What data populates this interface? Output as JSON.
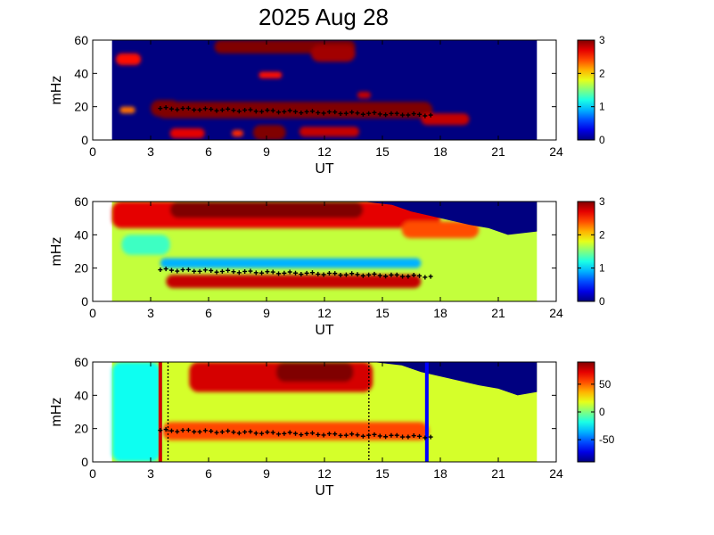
{
  "chart_data": {
    "title": "2025 Aug 28",
    "panels": [
      {
        "type": "heatmap",
        "id": "coherence",
        "xlabel": "UT",
        "ylabel": "mHz",
        "xlim": [
          0,
          24
        ],
        "ylim": [
          0,
          60
        ],
        "xticks": [
          "0",
          "3",
          "6",
          "9",
          "12",
          "15",
          "18",
          "21",
          "24"
        ],
        "yticks": [
          "0",
          "20",
          "40",
          "60"
        ],
        "data_span_ut": [
          1,
          23
        ],
        "colorbar": {
          "range": [
            0,
            3
          ],
          "ticks": [
            "0",
            "1",
            "2",
            "3"
          ]
        },
        "background_value": 0,
        "blobs": [
          {
            "ut": [
              3.3,
              17.6
            ],
            "mhz": [
              13,
              23
            ],
            "value": 3
          },
          {
            "ut": [
              3.0,
              4.5
            ],
            "mhz": [
              14,
              24
            ],
            "value": 3
          },
          {
            "ut": [
              17.0,
              19.5
            ],
            "mhz": [
              9,
              16
            ],
            "value": 2.8
          },
          {
            "ut": [
              8.3,
              10.0
            ],
            "mhz": [
              0,
              9
            ],
            "value": 3
          },
          {
            "ut": [
              4.0,
              5.8
            ],
            "mhz": [
              1,
              7
            ],
            "value": 2.7
          },
          {
            "ut": [
              7.2,
              7.8
            ],
            "mhz": [
              2,
              6
            ],
            "value": 2.5
          },
          {
            "ut": [
              10.7,
              13.8
            ],
            "mhz": [
              2,
              8
            ],
            "value": 2.8
          },
          {
            "ut": [
              6.3,
              13.6
            ],
            "mhz": [
              52,
              60
            ],
            "value": 3
          },
          {
            "ut": [
              11.3,
              13.6
            ],
            "mhz": [
              47,
              57
            ],
            "value": 2.9
          },
          {
            "ut": [
              1.2,
              2.5
            ],
            "mhz": [
              45,
              52
            ],
            "value": 2.6
          },
          {
            "ut": [
              1.4,
              2.2
            ],
            "mhz": [
              16,
              20
            ],
            "value": 2.3
          },
          {
            "ut": [
              8.6,
              9.8
            ],
            "mhz": [
              37,
              41
            ],
            "value": 2.6
          },
          {
            "ut": [
              13.7,
              14.4
            ],
            "mhz": [
              25,
              29
            ],
            "value": 2.8
          }
        ],
        "ridge": {
          "label": "dominant frequency",
          "ut": [
            3.5,
            17.5
          ],
          "mhz": [
            19,
            15
          ]
        }
      },
      {
        "type": "heatmap",
        "id": "power",
        "xlabel": "UT",
        "ylabel": "mHz",
        "xlim": [
          0,
          24
        ],
        "ylim": [
          0,
          60
        ],
        "xticks": [
          "0",
          "3",
          "6",
          "9",
          "12",
          "15",
          "18",
          "21",
          "24"
        ],
        "yticks": [
          "0",
          "20",
          "40",
          "60"
        ],
        "data_span_ut": [
          1,
          23
        ],
        "colorbar": {
          "range": [
            0,
            3
          ],
          "ticks": [
            "0",
            "1",
            "2",
            "3"
          ]
        },
        "background_value": 1.7,
        "blobs": [
          {
            "ut": [
              1.0,
              18.0
            ],
            "mhz": [
              44,
              60
            ],
            "value": 2.7
          },
          {
            "ut": [
              4.0,
              14.0
            ],
            "mhz": [
              50,
              60
            ],
            "value": 3
          },
          {
            "ut": [
              3.5,
              17.0
            ],
            "mhz": [
              20,
              26
            ],
            "value": 0.9
          },
          {
            "ut": [
              3.8,
              17.0
            ],
            "mhz": [
              8,
              16
            ],
            "value": 2.8
          },
          {
            "ut": [
              16.0,
              20.0
            ],
            "mhz": [
              38,
              48
            ],
            "value": 2.4
          },
          {
            "ut": [
              1.5,
              4.0
            ],
            "mhz": [
              28,
              40
            ],
            "value": 1.3
          }
        ],
        "dark_region": {
          "ut_start": 14.0,
          "mhz_top": 60,
          "value": 0
        },
        "ridge": {
          "label": "dominant frequency",
          "ut": [
            3.5,
            17.5
          ],
          "mhz": [
            19,
            15
          ]
        }
      },
      {
        "type": "heatmap",
        "id": "phase",
        "xlabel": "UT",
        "ylabel": "mHz",
        "xlim": [
          0,
          24
        ],
        "ylim": [
          0,
          60
        ],
        "xticks": [
          "0",
          "3",
          "6",
          "9",
          "12",
          "15",
          "18",
          "21",
          "24"
        ],
        "yticks": [
          "0",
          "20",
          "40",
          "60"
        ],
        "data_span_ut": [
          1,
          23
        ],
        "colorbar": {
          "range": [
            -90,
            90
          ],
          "ticks": [
            "-50",
            "0",
            "50"
          ]
        },
        "background_value": 15,
        "blobs": [
          {
            "ut": [
              5.0,
              14.5
            ],
            "mhz": [
              42,
              60
            ],
            "value": 75
          },
          {
            "ut": [
              9.5,
              13.5
            ],
            "mhz": [
              48,
              60
            ],
            "value": 90
          },
          {
            "ut": [
              3.6,
              17.4
            ],
            "mhz": [
              13,
              24
            ],
            "value": 55
          },
          {
            "ut": [
              1.0,
              3.5
            ],
            "mhz": [
              0,
              60
            ],
            "value": -20
          }
        ],
        "dark_region": {
          "ut_start": 14.5,
          "mhz_top": 60,
          "value": -90
        },
        "vertical_markers": [
          {
            "ut": 3.5,
            "color": "#cc0000",
            "style": "solid"
          },
          {
            "ut": 3.9,
            "color": "#000000",
            "style": "dotted"
          },
          {
            "ut": 14.3,
            "color": "#000000",
            "style": "dotted"
          },
          {
            "ut": 17.3,
            "color": "#0000ff",
            "style": "solid"
          }
        ],
        "ridge": {
          "label": "dominant frequency",
          "ut": [
            3.5,
            17.5
          ],
          "mhz": [
            19,
            15
          ]
        }
      }
    ]
  }
}
